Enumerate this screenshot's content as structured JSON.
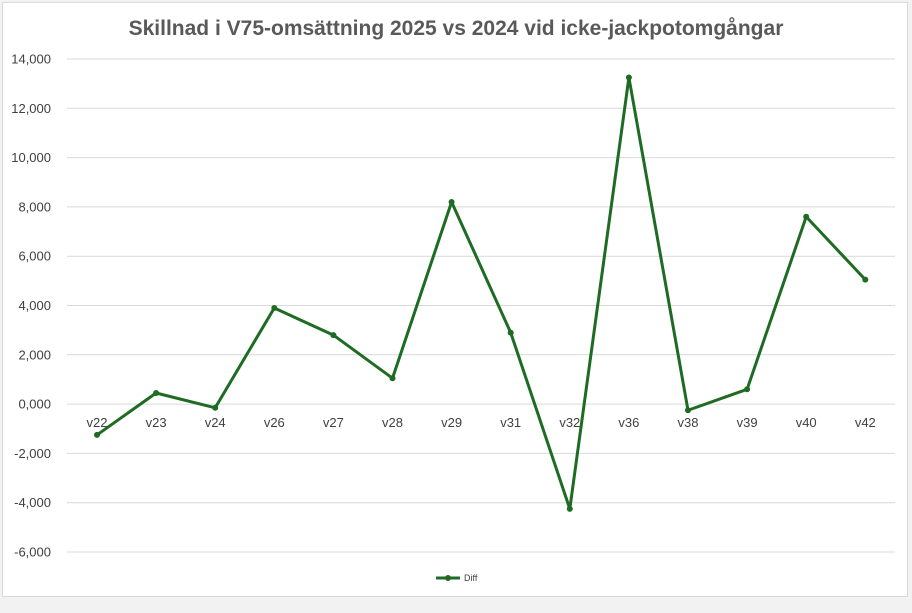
{
  "chart_data": {
    "type": "line",
    "title": "Skillnad i V75-omsättning 2025 vs 2024 vid icke-jackpotomgångar",
    "xlabel": "",
    "ylabel": "",
    "categories": [
      "v22",
      "v23",
      "v24",
      "v26",
      "v27",
      "v28",
      "v29",
      "v31",
      "v32",
      "v36",
      "v38",
      "v39",
      "v40",
      "v42"
    ],
    "series": [
      {
        "name": "Diff",
        "values": [
          -1250,
          450,
          -150,
          3900,
          2800,
          1050,
          8200,
          2900,
          -4250,
          13250,
          -250,
          600,
          7600,
          5050
        ]
      }
    ],
    "ylim": [
      -6000,
      14000
    ],
    "yticks": [
      14000,
      12000,
      10000,
      8000,
      6000,
      4000,
      2000,
      0,
      -2000,
      -4000,
      -6000
    ],
    "ytick_labels": [
      "14,000",
      "12,000",
      "10,000",
      "8,000",
      "6,000",
      "4,000",
      "2,000",
      "0,000",
      "-2,000",
      "-4,000",
      "-6,000"
    ],
    "grid": true,
    "legend": "bottom",
    "colors": {
      "series_line": "#1e6b24",
      "negative_tick": "#c00000",
      "positive_tick": "#404040",
      "gridline": "#d9d9d9",
      "title": "#595959"
    }
  }
}
